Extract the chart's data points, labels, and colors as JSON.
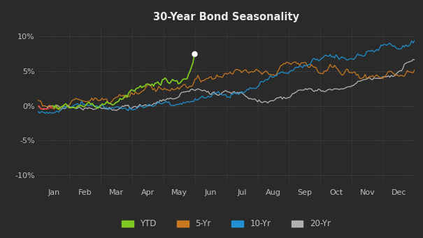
{
  "title": "30-Year Bond Seasonality",
  "background_color": "#2a2a2a",
  "title_color": "#e8e8e8",
  "grid_color": "#484848",
  "axis_label_color": "#c0c0c0",
  "yticks": [
    -0.1,
    -0.05,
    0.0,
    0.05,
    0.1
  ],
  "ytick_labels": [
    "-10%",
    "-5%",
    "0%",
    "5%",
    "10%"
  ],
  "months": [
    "Jan",
    "Feb",
    "Mar",
    "Apr",
    "May",
    "Jun",
    "Jul",
    "Aug",
    "Sep",
    "Oct",
    "Nov",
    "Dec"
  ],
  "legend": [
    {
      "label": "YTD",
      "color": "#7ec820"
    },
    {
      "label": "5-Yr",
      "color": "#c87820"
    },
    {
      "label": "10-Yr",
      "color": "#2090d0"
    },
    {
      "label": "20-Yr",
      "color": "#b0b0b0"
    }
  ],
  "color_5yr": "#c87820",
  "color_10yr": "#2090d0",
  "color_20yr": "#b8b8b8",
  "ytd_green": "#7ec820",
  "ytd_red": "#e03030",
  "ytd_dot": "#ffffff",
  "n_days": 260,
  "n_ytd": 108
}
